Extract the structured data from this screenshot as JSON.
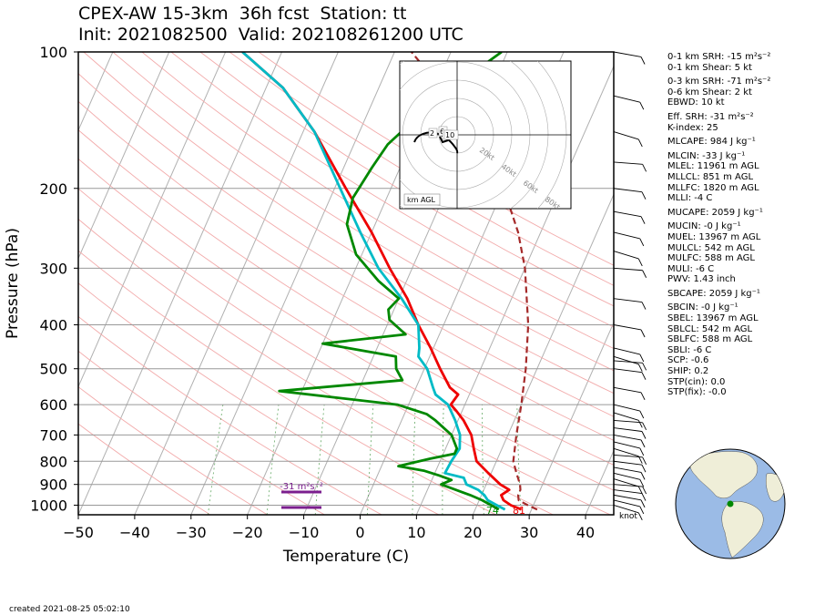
{
  "title_line1": "CPEX-AW 15-3km  36h fcst  Station: tt",
  "title_line2": "Init: 2021082500  Valid: 202108261200 UTC",
  "created": "created 2021-08-25 05:02:10",
  "chart_data": {
    "type": "line",
    "subtype": "skew-t log-p",
    "xlabel": "Temperature (C)",
    "ylabel": "Pressure (hPa)",
    "x_ticks": [
      "−50",
      "−40",
      "−30",
      "−20",
      "−10",
      "0",
      "10",
      "20",
      "30",
      "40"
    ],
    "x_tick_values": [
      -50,
      -40,
      -30,
      -20,
      -10,
      0,
      10,
      20,
      30,
      40
    ],
    "y_ticks": [
      "100",
      "200",
      "300",
      "400",
      "500",
      "600",
      "700",
      "800",
      "900",
      "1000"
    ],
    "y_tick_values": [
      100,
      200,
      300,
      400,
      500,
      600,
      700,
      800,
      900,
      1000
    ],
    "xlim": [
      -50,
      45
    ],
    "ylim": [
      1050,
      100
    ],
    "y_scale": "log",
    "series": [
      {
        "color": "#ee0000",
        "points": [
          [
            1022,
            28.2
          ],
          [
            1000,
            26
          ],
          [
            975,
            24.3
          ],
          [
            950,
            23.5
          ],
          [
            925,
            24.5
          ],
          [
            900,
            22.5
          ],
          [
            850,
            19.5
          ],
          [
            800,
            16.5
          ],
          [
            750,
            15
          ],
          [
            700,
            13.5
          ],
          [
            650,
            11
          ],
          [
            620,
            9
          ],
          [
            600,
            7.5
          ],
          [
            570,
            8
          ],
          [
            550,
            6
          ],
          [
            500,
            2.8
          ],
          [
            450,
            -0.5
          ],
          [
            400,
            -4.5
          ],
          [
            350,
            -8.5
          ],
          [
            300,
            -14
          ],
          [
            250,
            -20
          ],
          [
            200,
            -28
          ],
          [
            150,
            -38
          ],
          [
            120,
            -47
          ],
          [
            100,
            -57
          ]
        ]
      },
      {
        "color": "#00bbc6",
        "points": [
          [
            1022,
            25.3
          ],
          [
            1000,
            23.5
          ],
          [
            975,
            21.5
          ],
          [
            950,
            20.5
          ],
          [
            925,
            19
          ],
          [
            900,
            16.5
          ],
          [
            870,
            15.5
          ],
          [
            850,
            11.8
          ],
          [
            800,
            12
          ],
          [
            750,
            12.5
          ],
          [
            700,
            11.5
          ],
          [
            650,
            9.5
          ],
          [
            600,
            7
          ],
          [
            570,
            4
          ],
          [
            550,
            3
          ],
          [
            500,
            0.5
          ],
          [
            470,
            -2
          ],
          [
            450,
            -2.5
          ],
          [
            400,
            -4.5
          ],
          [
            350,
            -9.5
          ],
          [
            300,
            -16
          ],
          [
            250,
            -22
          ],
          [
            200,
            -29
          ],
          [
            150,
            -38
          ],
          [
            120,
            -47
          ],
          [
            100,
            -57
          ]
        ]
      },
      {
        "color": "#008800",
        "points": [
          [
            1022,
            24.2
          ],
          [
            1000,
            22.5
          ],
          [
            975,
            20.5
          ],
          [
            950,
            18
          ],
          [
            925,
            15
          ],
          [
            900,
            12
          ],
          [
            880,
            13.5
          ],
          [
            860,
            11
          ],
          [
            840,
            8
          ],
          [
            820,
            3
          ],
          [
            790,
            8
          ],
          [
            770,
            12
          ],
          [
            750,
            12
          ],
          [
            700,
            10
          ],
          [
            650,
            6
          ],
          [
            630,
            4
          ],
          [
            600,
            -2
          ],
          [
            560,
            -24
          ],
          [
            530,
            -3
          ],
          [
            500,
            -5
          ],
          [
            470,
            -6
          ],
          [
            440,
            -20
          ],
          [
            420,
            -6
          ],
          [
            390,
            -10
          ],
          [
            370,
            -11
          ],
          [
            350,
            -10
          ],
          [
            320,
            -15
          ],
          [
            280,
            -21
          ],
          [
            240,
            -25
          ],
          [
            210,
            -26
          ],
          [
            180,
            -25
          ],
          [
            160,
            -24
          ],
          [
            140,
            -21
          ],
          [
            120,
            -17
          ],
          [
            100,
            -11
          ]
        ]
      },
      {
        "color": "#a52a2a",
        "dash": true,
        "points": [
          [
            1022,
            31
          ],
          [
            1000,
            29
          ],
          [
            975,
            27
          ],
          [
            950,
            26.5
          ],
          [
            925,
            26.5
          ],
          [
            900,
            26
          ],
          [
            850,
            24.5
          ],
          [
            800,
            23
          ],
          [
            700,
            21.5
          ],
          [
            600,
            20
          ],
          [
            500,
            18
          ],
          [
            400,
            15
          ],
          [
            300,
            10
          ],
          [
            250,
            6
          ],
          [
            200,
            0
          ],
          [
            150,
            -10
          ],
          [
            120,
            -19
          ],
          [
            100,
            -27
          ]
        ]
      }
    ],
    "surface_labels": [
      {
        "text": "74",
        "t": 23.5,
        "color": "#008800"
      },
      {
        "text": "81",
        "t": 28.2,
        "color": "#ee0000"
      }
    ],
    "srh_bar_label": "-31 m²s⁻²",
    "barb_unit": "knot",
    "hodograph": {
      "label": "km AGL",
      "rings": [
        "20kt",
        "40kt",
        "60kt",
        "80kt"
      ],
      "height_labels": [
        "2",
        "6",
        "1",
        "10"
      ]
    }
  },
  "stats": [
    "0-1 km SRH: -15 m²s⁻²",
    "0-1 km Shear: 5 kt",
    "0-3 km SRH: -71 m²s⁻²",
    "0-6 km Shear: 2 kt",
    "EBWD: 10 kt",
    "Eff. SRH: -31 m²s⁻²",
    "K-index: 25",
    "MLCAPE: 984 J kg⁻¹",
    "MLCIN: -33 J kg⁻¹",
    "MLEL: 11961 m AGL",
    "MLLCL: 851 m AGL",
    "MLLFC: 1820 m AGL",
    "MLLI: -4 C",
    "MUCAPE: 2059 J kg⁻¹",
    "MUCIN: -0 J kg⁻¹",
    "MUEL: 13967 m AGL",
    "MULCL: 542 m AGL",
    "MULFC: 588 m AGL",
    "MULI: -6 C",
    "PWV: 1.43 inch",
    "SBCAPE: 2059 J kg⁻¹",
    "SBCIN: -0 J kg⁻¹",
    "SBEL: 13967 m AGL",
    "SBLCL: 542 m AGL",
    "SBLFC: 588 m AGL",
    "SBLI: -6 C",
    "SCP: -0.6",
    "SHIP: 0.2",
    "STP(cin): 0.0",
    "STP(fix): -0.0"
  ],
  "colors": {
    "temperature": "#ee0000",
    "virtual_temperature": "#00bbc6",
    "dewpoint": "#008800",
    "parcel": "#a52a2a",
    "srh_bar": "#7b1f8e",
    "map_ocean": "#9bbbe6",
    "map_land": "#efeed8"
  }
}
